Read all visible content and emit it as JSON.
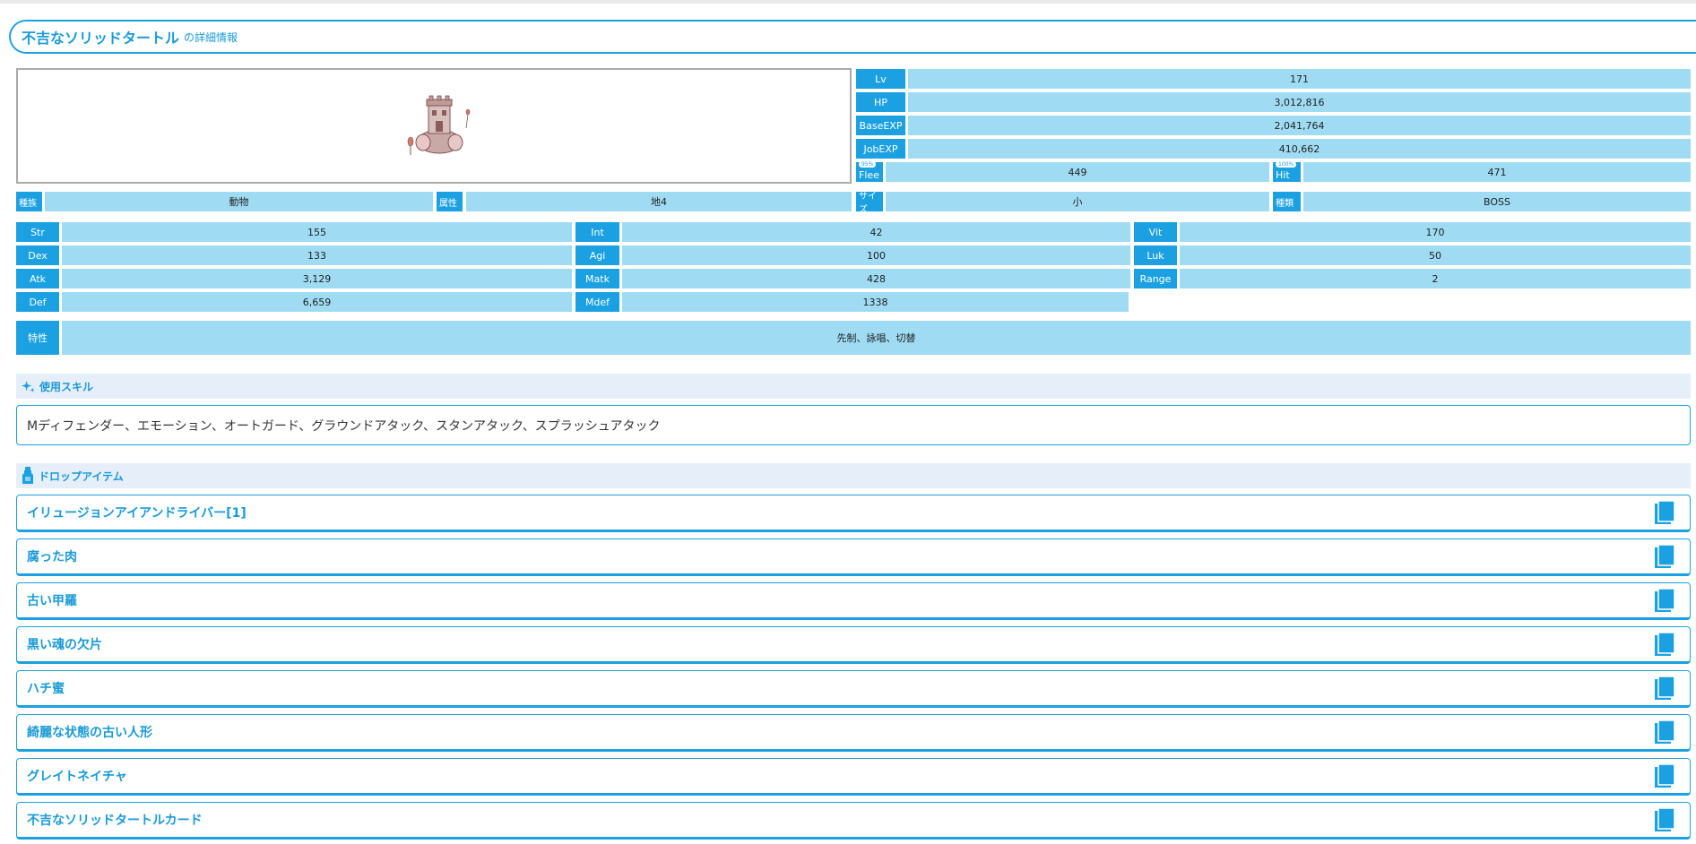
{
  "title": {
    "name": "不吉なソリッドタートル",
    "suffix": "の詳細情報"
  },
  "stats_top": {
    "lv": {
      "label": "Lv",
      "value": "171"
    },
    "hp": {
      "label": "HP",
      "value": "3,012,816"
    },
    "base_exp": {
      "label": "BaseEXP",
      "value": "2,041,764"
    },
    "job_exp": {
      "label": "JobEXP",
      "value": "410,662"
    },
    "flee": {
      "label": "Flee",
      "badge": "95%",
      "value": "449"
    },
    "hit": {
      "label": "Hit",
      "badge": "100%",
      "value": "471"
    }
  },
  "props": {
    "race": {
      "label": "種族",
      "value": "動物"
    },
    "element": {
      "label": "属性",
      "value": "地4"
    },
    "size": {
      "label": "サイズ",
      "value": "小"
    },
    "type": {
      "label": "種類",
      "value": "BOSS"
    }
  },
  "attrs": {
    "str": {
      "label": "Str",
      "value": "155"
    },
    "int": {
      "label": "Int",
      "value": "42"
    },
    "vit": {
      "label": "Vit",
      "value": "170"
    },
    "dex": {
      "label": "Dex",
      "value": "133"
    },
    "agi": {
      "label": "Agi",
      "value": "100"
    },
    "luk": {
      "label": "Luk",
      "value": "50"
    },
    "atk": {
      "label": "Atk",
      "value": "3,129"
    },
    "matk": {
      "label": "Matk",
      "value": "428"
    },
    "range": {
      "label": "Range",
      "value": "2"
    },
    "def": {
      "label": "Def",
      "value": "6,659"
    },
    "mdef": {
      "label": "Mdef",
      "value": "1338"
    }
  },
  "trait": {
    "label": "特性",
    "value": "先制、詠唱、切替"
  },
  "skills": {
    "heading": "使用スキル",
    "text": "Mディフェンダー、エモーション、オートガード、グラウンドアタック、スタンアタック、スプラッシュアタック"
  },
  "drops": {
    "heading": "ドロップアイテム",
    "items": [
      "イリュージョンアイアンドライバー[1]",
      "腐った肉",
      "古い甲羅",
      "黒い魂の欠片",
      "ハチ蜜",
      "綺麗な状態の古い人形",
      "グレイトネイチャ",
      "不吉なソリッドタートルカード"
    ]
  },
  "colors": {
    "accent": "#1ba1e2",
    "cell": "#9fdcf3",
    "section_bg": "#e6eefa"
  },
  "icons": {
    "skills": "sparkle-icon",
    "drops": "potion-icon",
    "item": "book-icon"
  }
}
